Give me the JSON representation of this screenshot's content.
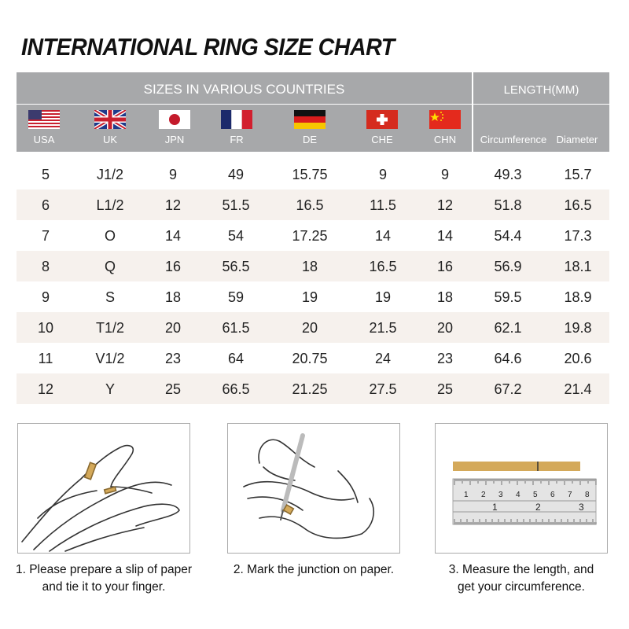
{
  "title": "INTERNATIONAL RING SIZE CHART",
  "header": {
    "sizes_label": "SIZES IN VARIOUS COUNTRIES",
    "length_label": "LENGTH(MM)"
  },
  "columns": [
    {
      "label": "USA",
      "flag": "us-flag"
    },
    {
      "label": "UK",
      "flag": "uk-flag"
    },
    {
      "label": "JPN",
      "flag": "japan-flag"
    },
    {
      "label": "FR",
      "flag": "france-flag"
    },
    {
      "label": "DE",
      "flag": "germany-flag"
    },
    {
      "label": "CHE",
      "flag": "switzerland-flag"
    },
    {
      "label": "CHN",
      "flag": "china-flag"
    },
    {
      "label": "Circumference"
    },
    {
      "label": "Diameter"
    }
  ],
  "rows": [
    [
      "5",
      "J1/2",
      "9",
      "49",
      "15.75",
      "9",
      "9",
      "49.3",
      "15.7"
    ],
    [
      "6",
      "L1/2",
      "12",
      "51.5",
      "16.5",
      "11.5",
      "12",
      "51.8",
      "16.5"
    ],
    [
      "7",
      "O",
      "14",
      "54",
      "17.25",
      "14",
      "14",
      "54.4",
      "17.3"
    ],
    [
      "8",
      "Q",
      "16",
      "56.5",
      "18",
      "16.5",
      "16",
      "56.9",
      "18.1"
    ],
    [
      "9",
      "S",
      "18",
      "59",
      "19",
      "19",
      "18",
      "59.5",
      "18.9"
    ],
    [
      "10",
      "T1/2",
      "20",
      "61.5",
      "20",
      "21.5",
      "20",
      "62.1",
      "19.8"
    ],
    [
      "11",
      "V1/2",
      "23",
      "64",
      "20.75",
      "24",
      "23",
      "64.6",
      "20.6"
    ],
    [
      "12",
      "Y",
      "25",
      "66.5",
      "21.25",
      "27.5",
      "25",
      "67.2",
      "21.4"
    ]
  ],
  "colors": {
    "header_bg": "#a7a8aa",
    "row_alt": "#f6f1ed",
    "paper_strip": "#d4a95a"
  },
  "steps": [
    {
      "line1": "1. Please prepare a slip of paper",
      "line2": "and tie it to your finger."
    },
    {
      "line1": "2. Mark the junction on paper.",
      "line2": ""
    },
    {
      "line1": "3. Measure the length, and",
      "line2": "get your circumference."
    }
  ],
  "ruler": {
    "cm_marks": [
      "1",
      "2",
      "3",
      "4",
      "5",
      "6",
      "7",
      "8"
    ],
    "inch_marks": [
      "1",
      "2",
      "3"
    ]
  }
}
